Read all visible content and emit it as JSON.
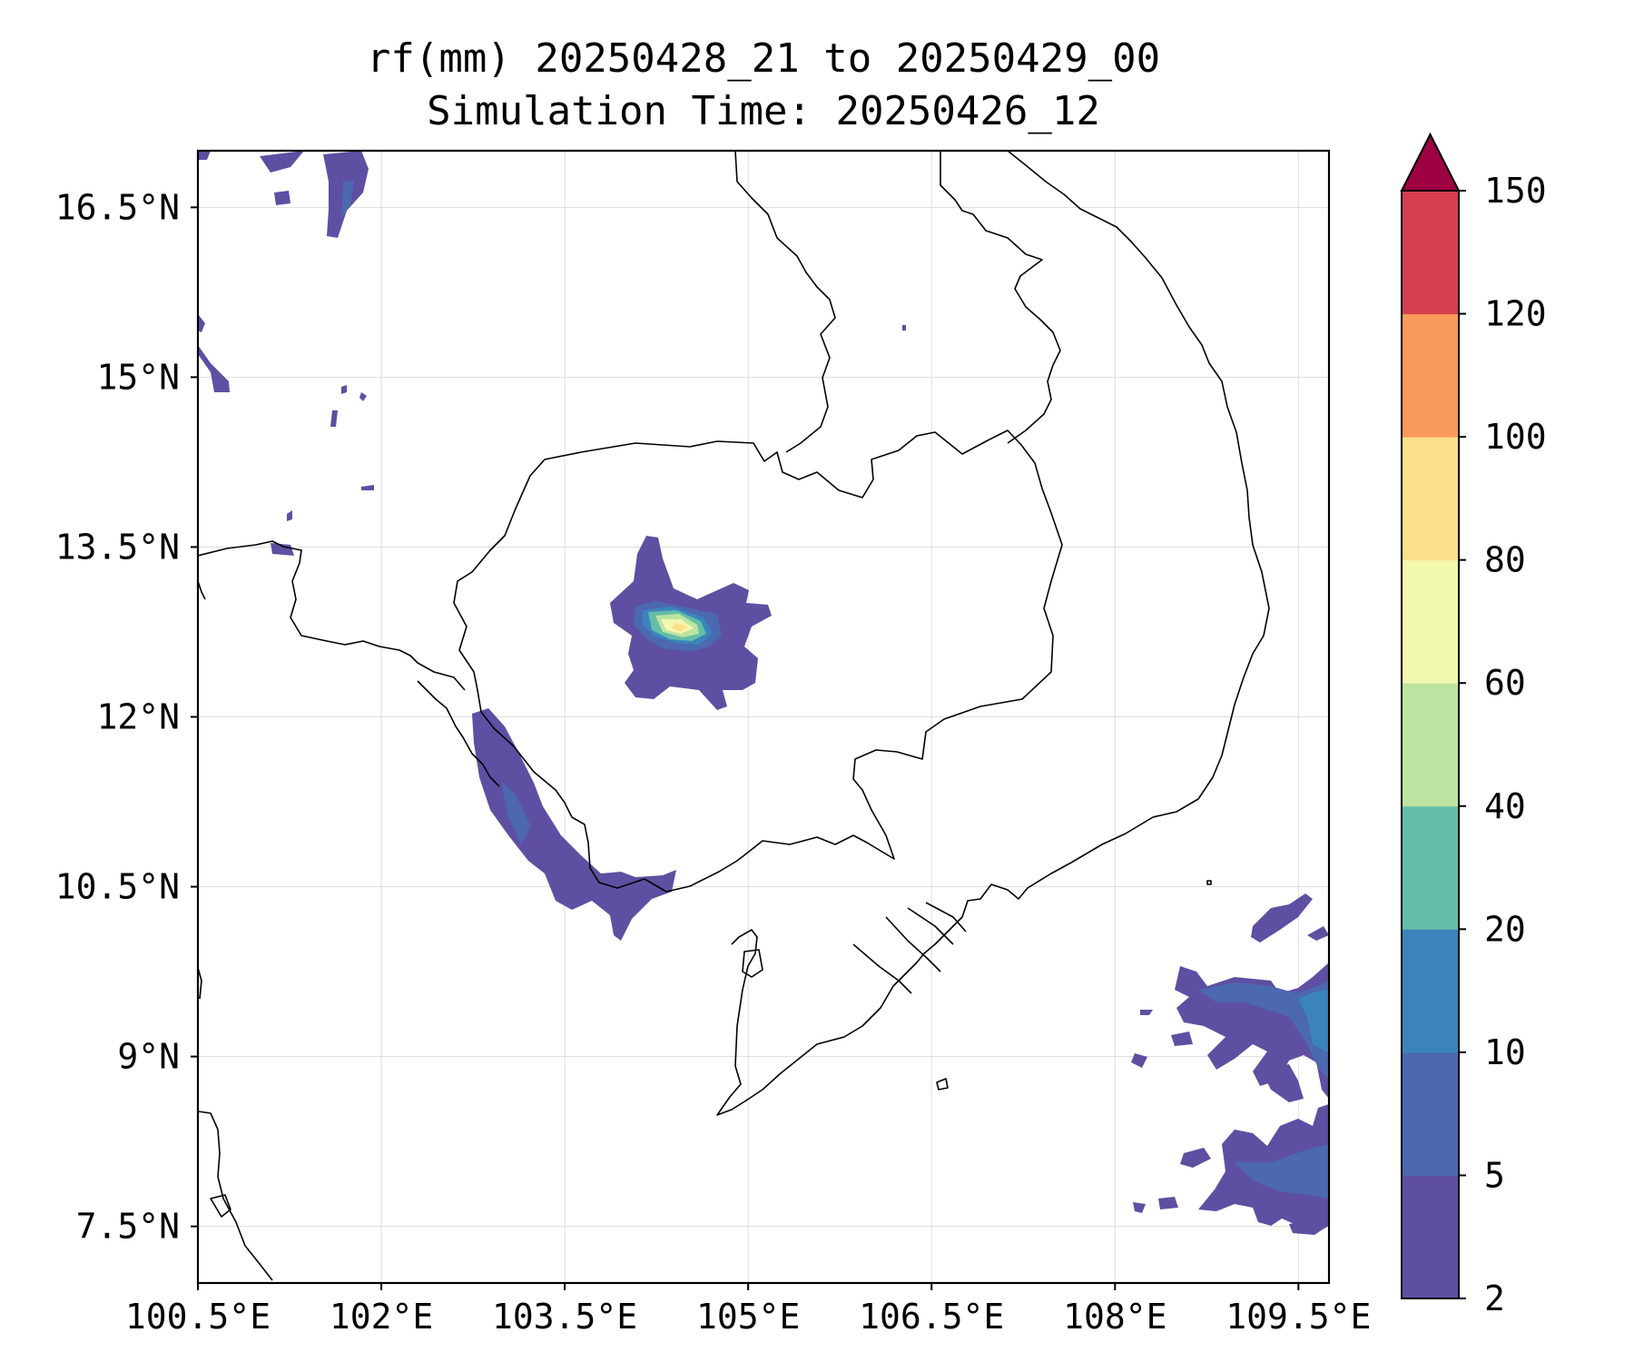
{
  "title": {
    "line1": "rf(mm) 20250428_21 to 20250429_00",
    "line2": "Simulation Time: 20250426_12"
  },
  "map": {
    "lon_range": [
      100.5,
      109.75
    ],
    "lat_range": [
      7.0,
      17.0
    ],
    "lon_ticks": [
      100.5,
      102.0,
      103.5,
      105.0,
      106.5,
      108.0,
      109.5
    ],
    "lat_ticks": [
      7.5,
      9.0,
      10.5,
      12.0,
      13.5,
      15.0,
      16.5
    ],
    "lon_labels": [
      "100.5°E",
      "102°E",
      "103.5°E",
      "105°E",
      "106.5°E",
      "108°E",
      "109.5°E"
    ],
    "lat_labels": [
      "7.5°N",
      "9°N",
      "10.5°N",
      "12°N",
      "13.5°N",
      "15°N",
      "16.5°N"
    ],
    "gridlines": true
  },
  "colorbar": {
    "levels": [
      2,
      5,
      10,
      20,
      40,
      60,
      80,
      100,
      120,
      150
    ],
    "labels": [
      "2",
      "5",
      "10",
      "20",
      "40",
      "60",
      "80",
      "100",
      "120",
      "150"
    ],
    "colors": [
      "#5e4fa2",
      "#4b68b0",
      "#3a84bb",
      "#63bda8",
      "#bce4a0",
      "#f2f8ae",
      "#fcdf8b",
      "#f89a59",
      "#d53e4f"
    ],
    "extend_color": "#9e0142",
    "extend": "max"
  }
}
